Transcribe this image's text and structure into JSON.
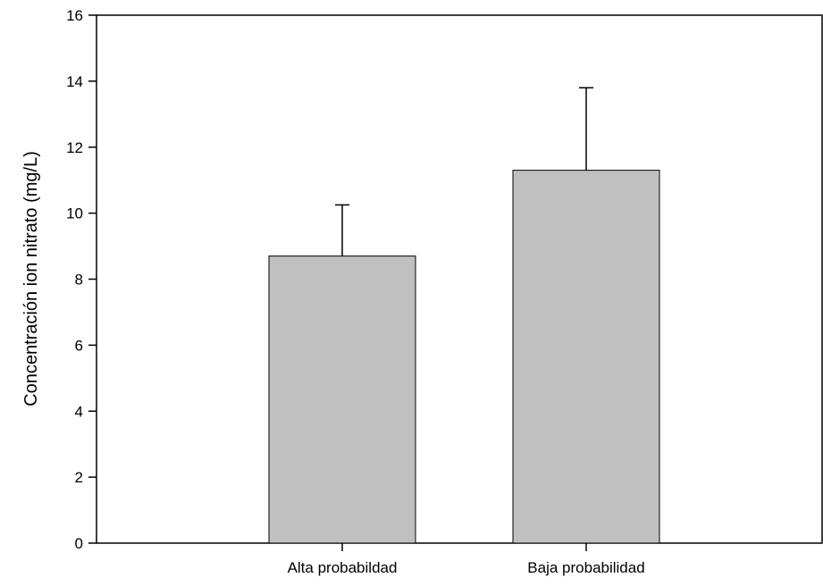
{
  "chart_data": {
    "type": "bar",
    "title": "",
    "xlabel": "",
    "ylabel": "Concentración ion nitrato (mg/L)",
    "categories": [
      "Alta probabildad",
      "Baja probabilidad"
    ],
    "values": [
      8.7,
      11.3
    ],
    "error_bars_upper": [
      1.55,
      2.5
    ],
    "ylim": [
      0,
      16
    ],
    "yticks": [
      "0",
      "2",
      "4",
      "6",
      "8",
      "10",
      "12",
      "14",
      "16"
    ],
    "grid": false,
    "legend": "none",
    "colors": {
      "bar_fill": "#c0c0c0",
      "bar_stroke": "#000000",
      "axis": "#000000",
      "background": "#ffffff"
    }
  }
}
